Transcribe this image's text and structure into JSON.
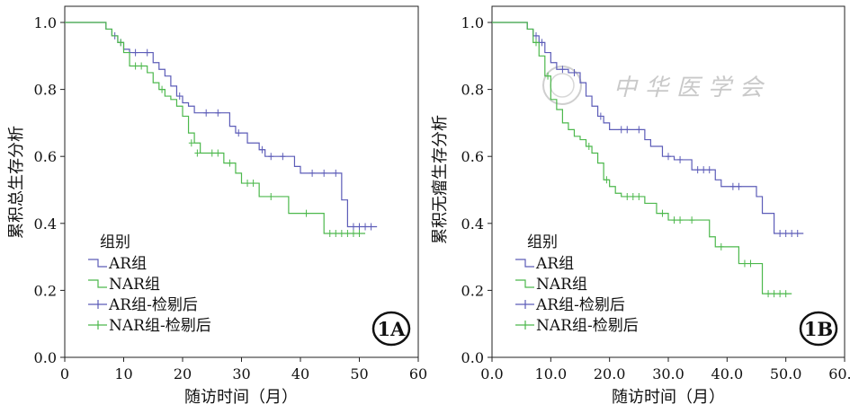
{
  "watermark": {
    "text": "中华医学会"
  },
  "chart_data": [
    {
      "type": "line",
      "subtype": "kaplan-meier",
      "badge": "1A",
      "xlabel": "随访时间（月）",
      "ylabel": "累积总生存分析",
      "xlim": [
        0,
        60
      ],
      "ylim": [
        0,
        1.0
      ],
      "xticks": [
        0,
        10,
        20,
        30,
        40,
        50,
        60
      ],
      "xtick_labels": [
        "0",
        "10",
        "20",
        "30",
        "40",
        "50",
        "60"
      ],
      "yticks": [
        0,
        0.2,
        0.4,
        0.6,
        0.8,
        1.0
      ],
      "ytick_labels": [
        "0.0",
        "0.2",
        "0.4",
        "0.6",
        "0.8",
        "1.0"
      ],
      "legend": {
        "title": "组别",
        "placement": "bottom-left",
        "entries": [
          {
            "label": "AR组",
            "color": "#5c5cb8",
            "symbol": "line"
          },
          {
            "label": "NAR组",
            "color": "#4cb84c",
            "symbol": "line"
          },
          {
            "label": "AR组-检剔后",
            "color": "#5c5cb8",
            "symbol": "cross"
          },
          {
            "label": "NAR组-检剔后",
            "color": "#4cb84c",
            "symbol": "cross"
          }
        ]
      },
      "series": [
        {
          "name": "AR组",
          "color": "#5c5cb8",
          "steps": [
            [
              0,
              1.0
            ],
            [
              7,
              0.98
            ],
            [
              8,
              0.96
            ],
            [
              9,
              0.94
            ],
            [
              10,
              0.92
            ],
            [
              11,
              0.91
            ],
            [
              15,
              0.88
            ],
            [
              16,
              0.86
            ],
            [
              17,
              0.84
            ],
            [
              18,
              0.81
            ],
            [
              19,
              0.78
            ],
            [
              20,
              0.76
            ],
            [
              21,
              0.75
            ],
            [
              22,
              0.73
            ],
            [
              28,
              0.69
            ],
            [
              29,
              0.67
            ],
            [
              31,
              0.64
            ],
            [
              33,
              0.62
            ],
            [
              34,
              0.6
            ],
            [
              39,
              0.57
            ],
            [
              40,
              0.55
            ],
            [
              47,
              0.47
            ],
            [
              48,
              0.39
            ],
            [
              53,
              0.39
            ]
          ],
          "censored": [
            [
              8.5,
              0.96
            ],
            [
              9.5,
              0.94
            ],
            [
              12,
              0.91
            ],
            [
              14,
              0.91
            ],
            [
              19.5,
              0.78
            ],
            [
              24,
              0.73
            ],
            [
              26,
              0.73
            ],
            [
              29.5,
              0.67
            ],
            [
              33.5,
              0.62
            ],
            [
              35,
              0.6
            ],
            [
              37,
              0.6
            ],
            [
              42,
              0.55
            ],
            [
              44,
              0.55
            ],
            [
              46,
              0.55
            ],
            [
              49,
              0.39
            ],
            [
              50,
              0.39
            ],
            [
              51,
              0.39
            ],
            [
              52,
              0.39
            ]
          ]
        },
        {
          "name": "NAR组",
          "color": "#4cb84c",
          "steps": [
            [
              0,
              1.0
            ],
            [
              7,
              0.98
            ],
            [
              8,
              0.96
            ],
            [
              9,
              0.94
            ],
            [
              10,
              0.91
            ],
            [
              11,
              0.87
            ],
            [
              14,
              0.85
            ],
            [
              15,
              0.82
            ],
            [
              16,
              0.8
            ],
            [
              17,
              0.78
            ],
            [
              18,
              0.77
            ],
            [
              19,
              0.75
            ],
            [
              20,
              0.72
            ],
            [
              21,
              0.67
            ],
            [
              22,
              0.64
            ],
            [
              23,
              0.61
            ],
            [
              27,
              0.58
            ],
            [
              29,
              0.55
            ],
            [
              30,
              0.52
            ],
            [
              33,
              0.48
            ],
            [
              38,
              0.43
            ],
            [
              44,
              0.37
            ],
            [
              51,
              0.37
            ]
          ],
          "censored": [
            [
              9.5,
              0.94
            ],
            [
              12,
              0.87
            ],
            [
              13,
              0.87
            ],
            [
              16.5,
              0.8
            ],
            [
              21.5,
              0.64
            ],
            [
              22.5,
              0.61
            ],
            [
              25,
              0.61
            ],
            [
              26,
              0.61
            ],
            [
              28,
              0.58
            ],
            [
              31,
              0.52
            ],
            [
              32,
              0.52
            ],
            [
              35,
              0.48
            ],
            [
              41,
              0.43
            ],
            [
              45,
              0.37
            ],
            [
              46,
              0.37
            ],
            [
              47,
              0.37
            ],
            [
              48,
              0.37
            ],
            [
              49,
              0.37
            ],
            [
              50,
              0.37
            ]
          ]
        }
      ]
    },
    {
      "type": "line",
      "subtype": "kaplan-meier",
      "badge": "1B",
      "xlabel": "随访时间（月）",
      "ylabel": "累积无瘤生存分析",
      "xlim": [
        0,
        60
      ],
      "ylim": [
        0,
        1.0
      ],
      "xticks": [
        0,
        10,
        20,
        30,
        40,
        50,
        60
      ],
      "xtick_labels": [
        "0.0",
        "10.0",
        "20.0",
        "30.0",
        "40.0",
        "50.0",
        "60.0"
      ],
      "yticks": [
        0,
        0.2,
        0.4,
        0.6,
        0.8,
        1.0
      ],
      "ytick_labels": [
        "0.0",
        "0.2",
        "0.4",
        "0.6",
        "0.8",
        "1.0"
      ],
      "legend": {
        "title": "组别",
        "placement": "bottom-left",
        "entries": [
          {
            "label": "AR组",
            "color": "#5c5cb8",
            "symbol": "line"
          },
          {
            "label": "NAR组",
            "color": "#4cb84c",
            "symbol": "line"
          },
          {
            "label": "AR组-检剔后",
            "color": "#5c5cb8",
            "symbol": "cross"
          },
          {
            "label": "NAR组-检剔后",
            "color": "#4cb84c",
            "symbol": "cross"
          }
        ]
      },
      "series": [
        {
          "name": "AR组",
          "color": "#5c5cb8",
          "steps": [
            [
              0,
              1.0
            ],
            [
              6,
              0.98
            ],
            [
              7,
              0.96
            ],
            [
              8,
              0.94
            ],
            [
              9,
              0.91
            ],
            [
              10,
              0.88
            ],
            [
              11,
              0.86
            ],
            [
              13,
              0.85
            ],
            [
              15,
              0.82
            ],
            [
              16,
              0.78
            ],
            [
              17,
              0.75
            ],
            [
              18,
              0.72
            ],
            [
              19,
              0.7
            ],
            [
              20,
              0.68
            ],
            [
              26,
              0.65
            ],
            [
              27,
              0.63
            ],
            [
              29,
              0.6
            ],
            [
              31,
              0.59
            ],
            [
              34,
              0.56
            ],
            [
              38,
              0.53
            ],
            [
              39,
              0.51
            ],
            [
              45,
              0.48
            ],
            [
              46,
              0.43
            ],
            [
              48,
              0.37
            ],
            [
              53,
              0.37
            ]
          ],
          "censored": [
            [
              7.5,
              0.96
            ],
            [
              8.5,
              0.94
            ],
            [
              12,
              0.86
            ],
            [
              14,
              0.85
            ],
            [
              18.5,
              0.72
            ],
            [
              22,
              0.68
            ],
            [
              23,
              0.68
            ],
            [
              25,
              0.68
            ],
            [
              30,
              0.6
            ],
            [
              32,
              0.59
            ],
            [
              35,
              0.56
            ],
            [
              36,
              0.56
            ],
            [
              37,
              0.56
            ],
            [
              41,
              0.51
            ],
            [
              42,
              0.51
            ],
            [
              49,
              0.37
            ],
            [
              50,
              0.37
            ],
            [
              51,
              0.37
            ],
            [
              52,
              0.37
            ]
          ]
        },
        {
          "name": "NAR组",
          "color": "#4cb84c",
          "steps": [
            [
              0,
              1.0
            ],
            [
              6,
              0.98
            ],
            [
              7,
              0.94
            ],
            [
              8,
              0.9
            ],
            [
              9,
              0.84
            ],
            [
              10,
              0.77
            ],
            [
              11,
              0.74
            ],
            [
              12,
              0.7
            ],
            [
              13,
              0.68
            ],
            [
              14,
              0.66
            ],
            [
              15,
              0.65
            ],
            [
              16,
              0.63
            ],
            [
              17,
              0.61
            ],
            [
              18,
              0.58
            ],
            [
              19,
              0.53
            ],
            [
              20,
              0.51
            ],
            [
              21,
              0.49
            ],
            [
              22,
              0.48
            ],
            [
              26,
              0.46
            ],
            [
              28,
              0.43
            ],
            [
              30,
              0.41
            ],
            [
              37,
              0.36
            ],
            [
              38,
              0.33
            ],
            [
              42,
              0.28
            ],
            [
              46,
              0.19
            ],
            [
              51,
              0.19
            ]
          ],
          "censored": [
            [
              7.5,
              0.94
            ],
            [
              9.5,
              0.84
            ],
            [
              16.5,
              0.63
            ],
            [
              19.5,
              0.53
            ],
            [
              23,
              0.48
            ],
            [
              24,
              0.48
            ],
            [
              25,
              0.48
            ],
            [
              29,
              0.43
            ],
            [
              31,
              0.41
            ],
            [
              32,
              0.41
            ],
            [
              34,
              0.41
            ],
            [
              39,
              0.33
            ],
            [
              43,
              0.28
            ],
            [
              44,
              0.28
            ],
            [
              47,
              0.19
            ],
            [
              48,
              0.19
            ],
            [
              49,
              0.19
            ],
            [
              50,
              0.19
            ]
          ]
        }
      ]
    }
  ]
}
